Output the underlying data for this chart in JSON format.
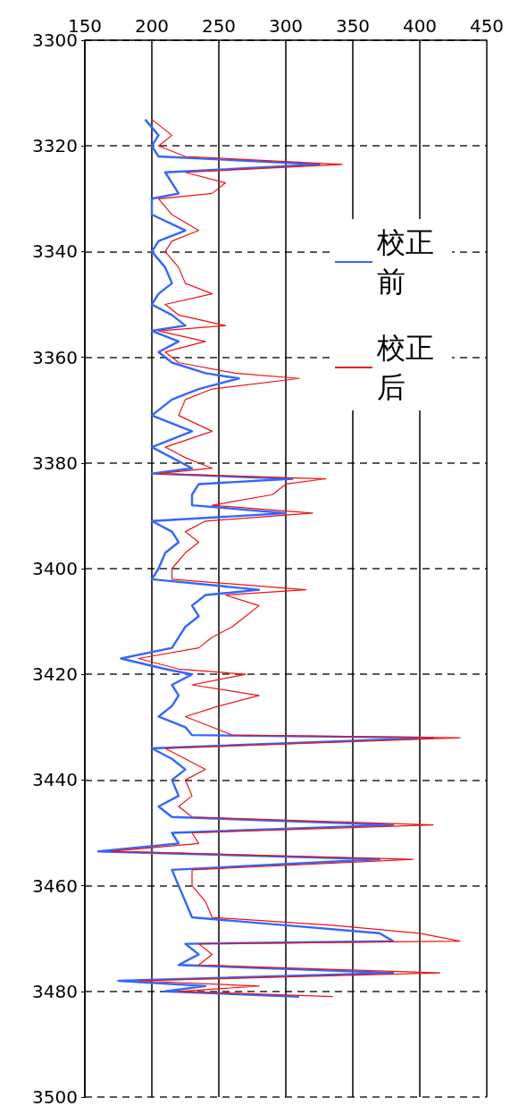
{
  "chart_data": {
    "type": "line",
    "xlim": [
      150,
      450
    ],
    "xticks": [
      150,
      200,
      250,
      300,
      350,
      400,
      450
    ],
    "ylim": [
      3500,
      3300
    ],
    "yticks": [
      3300,
      3320,
      3340,
      3360,
      3380,
      3400,
      3420,
      3440,
      3460,
      3480,
      3500
    ],
    "grid": true,
    "legend": "top right",
    "marker": "none",
    "line_style": "solid",
    "series": [
      {
        "name": "校正前",
        "color": "#3366ff",
        "x": [
          195,
          205,
          200,
          205,
          325,
          210,
          215,
          220,
          200,
          200,
          225,
          205,
          200,
          210,
          215,
          205,
          200,
          215,
          225,
          200,
          220,
          205,
          215,
          240,
          265,
          235,
          215,
          200,
          230,
          200,
          215,
          230,
          200,
          305,
          235,
          230,
          230,
          300,
          200,
          215,
          220,
          210,
          205,
          200,
          280,
          240,
          230,
          235,
          225,
          220,
          215,
          177,
          210,
          230,
          215,
          220,
          215,
          205,
          225,
          230,
          410,
          200,
          215,
          225,
          215,
          220,
          205,
          215,
          380,
          215,
          220,
          160,
          370,
          215,
          220,
          225,
          230,
          300,
          370,
          380,
          225,
          235,
          220,
          380,
          175,
          240,
          210,
          310
        ],
        "values": [
          3315,
          3318,
          3320,
          3322,
          3323.5,
          3325,
          3327,
          3329,
          3330,
          3333,
          3336,
          3338,
          3340,
          3343,
          3346,
          3348,
          3350,
          3352,
          3354,
          3355,
          3357,
          3359,
          3361,
          3363,
          3364,
          3366,
          3368,
          3371,
          3374,
          3377,
          3379,
          3381,
          3382,
          3383,
          3384,
          3386,
          3388,
          3389.5,
          3391,
          3393,
          3395,
          3397,
          3400,
          3402,
          3404,
          3405,
          3407,
          3409,
          3411,
          3413,
          3415,
          3417,
          3419,
          3420,
          3422,
          3424,
          3426,
          3428,
          3430,
          3431.5,
          3432,
          3434,
          3436,
          3438,
          3440,
          3443,
          3445,
          3447,
          3448.5,
          3450,
          3452,
          3453.5,
          3455,
          3457,
          3460,
          3463,
          3466,
          3467.5,
          3469,
          3470.5,
          3471,
          3473,
          3475,
          3476.5,
          3478,
          3479,
          3480,
          3481
        ]
      },
      {
        "name": "校正后",
        "color": "#ee1111",
        "x": [
          200,
          215,
          205,
          225,
          342,
          225,
          255,
          245,
          205,
          215,
          235,
          215,
          210,
          220,
          225,
          245,
          210,
          220,
          255,
          205,
          240,
          210,
          220,
          262,
          310,
          245,
          225,
          220,
          245,
          210,
          225,
          245,
          205,
          330,
          300,
          290,
          245,
          320,
          240,
          225,
          235,
          225,
          215,
          215,
          315,
          255,
          280,
          270,
          260,
          245,
          235,
          190,
          220,
          270,
          230,
          280,
          250,
          225,
          245,
          260,
          430,
          210,
          225,
          240,
          225,
          230,
          220,
          230,
          410,
          230,
          235,
          170,
          395,
          230,
          230,
          240,
          245,
          335,
          400,
          430,
          235,
          245,
          235,
          415,
          190,
          280,
          220,
          335
        ],
        "values": [
          3315,
          3318,
          3320,
          3322,
          3323.5,
          3325,
          3327,
          3329,
          3330,
          3333,
          3336,
          3338,
          3340,
          3343,
          3346,
          3348,
          3350,
          3352,
          3354,
          3355,
          3357,
          3359,
          3361,
          3363,
          3364,
          3366,
          3368,
          3371,
          3374,
          3377,
          3379,
          3381,
          3382,
          3383,
          3384,
          3386,
          3388,
          3389.5,
          3391,
          3393,
          3395,
          3397,
          3400,
          3402,
          3404,
          3405,
          3407,
          3409,
          3411,
          3413,
          3415,
          3417,
          3419,
          3420,
          3422,
          3424,
          3426,
          3428,
          3430,
          3431.5,
          3432,
          3434,
          3436,
          3438,
          3440,
          3443,
          3445,
          3447,
          3448.5,
          3450,
          3452,
          3453.5,
          3455,
          3457,
          3460,
          3463,
          3466,
          3467.5,
          3469,
          3470.5,
          3471,
          3473,
          3475,
          3476.5,
          3478,
          3479,
          3480,
          3481
        ]
      }
    ]
  }
}
